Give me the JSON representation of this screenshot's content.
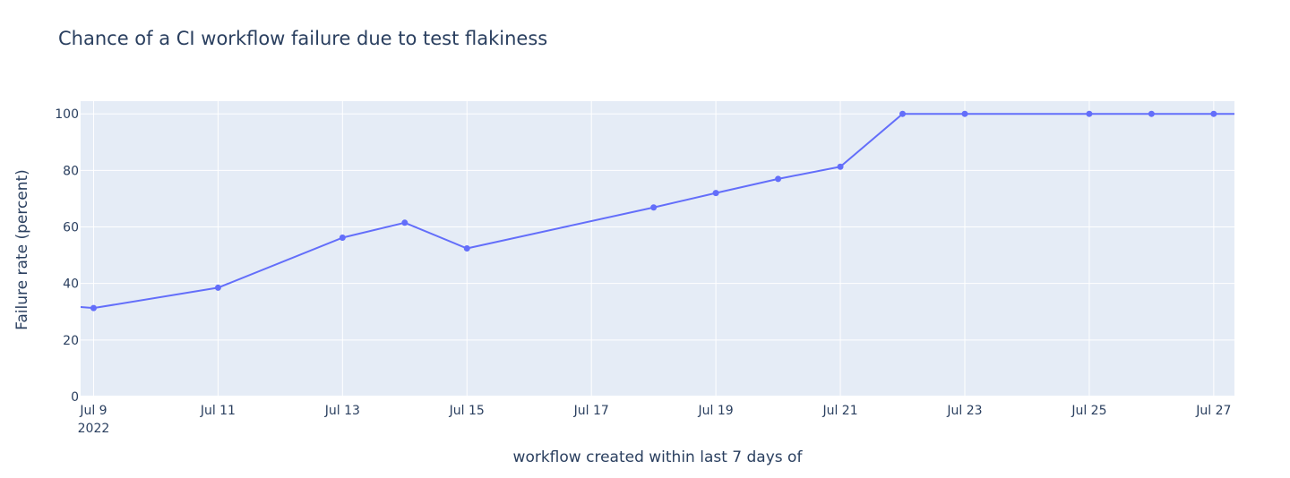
{
  "chart_data": {
    "type": "line",
    "title": "Chance of a CI workflow failure due to test flakiness",
    "xlabel": "workflow created within last 7 days of",
    "ylabel": "Failure rate (percent)",
    "xlim": [
      "2022-07-08T19:00",
      "2022-07-27T08:00"
    ],
    "ylim": [
      0,
      104.5
    ],
    "x_ticks": [
      "2022-07-09",
      "2022-07-11",
      "2022-07-13",
      "2022-07-15",
      "2022-07-17",
      "2022-07-19",
      "2022-07-21",
      "2022-07-23",
      "2022-07-25",
      "2022-07-27"
    ],
    "x_tick_labels": [
      "Jul 9",
      "Jul 11",
      "Jul 13",
      "Jul 15",
      "Jul 17",
      "Jul 19",
      "Jul 21",
      "Jul 23",
      "Jul 25",
      "Jul 27"
    ],
    "x_tick_sublabel": "2022",
    "y_ticks": [
      0,
      20,
      40,
      60,
      80,
      100
    ],
    "grid": true,
    "colors": {
      "line": "#636efa",
      "plot_bg": "#e5ecf6",
      "grid": "#ffffff",
      "text": "#2a3f5f"
    },
    "series": [
      {
        "x": [
          "2022-07-08",
          "2022-07-09",
          "2022-07-11",
          "2022-07-13",
          "2022-07-14",
          "2022-07-15",
          "2022-07-18",
          "2022-07-19",
          "2022-07-20",
          "2022-07-21",
          "2022-07-22",
          "2022-07-23",
          "2022-07-25",
          "2022-07-26",
          "2022-07-27",
          "2022-07-28"
        ],
        "values": [
          33,
          31.3,
          38.5,
          56.2,
          61.5,
          52.4,
          66.9,
          72,
          77,
          81.3,
          100,
          100,
          100,
          100,
          100,
          100
        ]
      }
    ]
  }
}
